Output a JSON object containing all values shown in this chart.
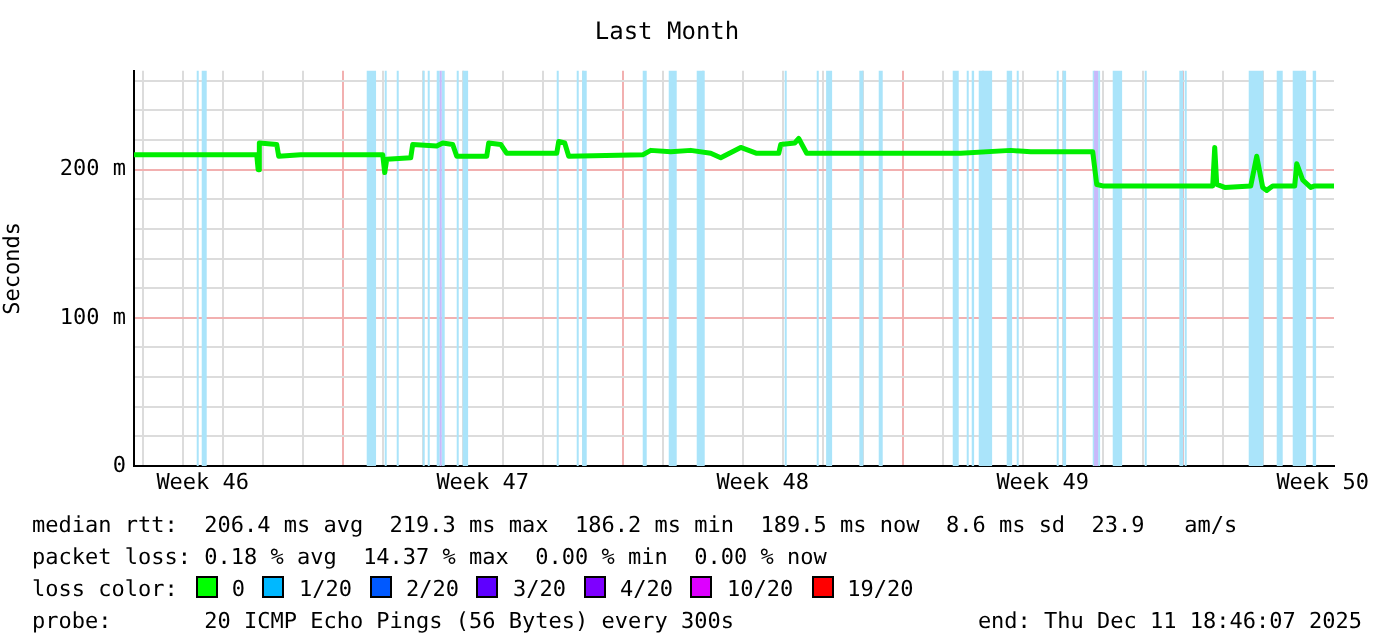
{
  "chart_data": {
    "type": "line",
    "title": "Last Month",
    "ylabel": "Seconds",
    "xlim": [
      "2025-11-11T18:46",
      "2025-12-11T18:46"
    ],
    "xticks": [
      {
        "value": "2025-11-12",
        "label": null
      },
      {
        "value": "2025-11-13",
        "label": null
      },
      {
        "value": "2025-11-13T12:00",
        "label": "Week 46"
      },
      {
        "value": "2025-11-14",
        "label": null
      },
      {
        "value": "2025-11-15",
        "label": null
      },
      {
        "value": "2025-11-16",
        "label": null
      },
      {
        "value": "2025-11-17",
        "label": null
      },
      {
        "value": "2025-11-18",
        "label": null
      },
      {
        "value": "2025-11-19",
        "label": null
      },
      {
        "value": "2025-11-20",
        "label": null
      },
      {
        "value": "2025-11-20T12:00",
        "label": "Week 47"
      },
      {
        "value": "2025-11-21",
        "label": null
      },
      {
        "value": "2025-11-22",
        "label": null
      },
      {
        "value": "2025-11-23",
        "label": null
      },
      {
        "value": "2025-11-24",
        "label": null
      },
      {
        "value": "2025-11-25",
        "label": null
      },
      {
        "value": "2025-11-26",
        "label": null
      },
      {
        "value": "2025-11-27",
        "label": null
      },
      {
        "value": "2025-11-27T12:00",
        "label": "Week 48"
      },
      {
        "value": "2025-11-28",
        "label": null
      },
      {
        "value": "2025-11-29",
        "label": null
      },
      {
        "value": "2025-11-30",
        "label": null
      },
      {
        "value": "2025-12-01",
        "label": null
      },
      {
        "value": "2025-12-02",
        "label": null
      },
      {
        "value": "2025-12-03",
        "label": null
      },
      {
        "value": "2025-12-04",
        "label": null
      },
      {
        "value": "2025-12-04T12:00",
        "label": "Week 49"
      },
      {
        "value": "2025-12-05",
        "label": null
      },
      {
        "value": "2025-12-06",
        "label": null
      },
      {
        "value": "2025-12-07",
        "label": null
      },
      {
        "value": "2025-12-08",
        "label": null
      },
      {
        "value": "2025-12-09",
        "label": null
      },
      {
        "value": "2025-12-10",
        "label": null
      },
      {
        "value": "2025-12-11",
        "label": null
      },
      {
        "value": "2025-12-11T12:00",
        "label": "Week 50"
      }
    ],
    "ylim": [
      0,
      266.7
    ],
    "yticks": [
      {
        "value": 0,
        "label": "0"
      },
      {
        "value": 20,
        "label": null
      },
      {
        "value": 40,
        "label": null
      },
      {
        "value": 60,
        "label": null
      },
      {
        "value": 80,
        "label": null
      },
      {
        "value": 100,
        "label": "100 m"
      },
      {
        "value": 120,
        "label": null
      },
      {
        "value": 140,
        "label": null
      },
      {
        "value": 160,
        "label": null
      },
      {
        "value": 180,
        "label": null
      },
      {
        "value": 200,
        "label": "200 m"
      },
      {
        "value": 220,
        "label": null
      },
      {
        "value": 240,
        "label": null
      },
      {
        "value": 260,
        "label": null
      }
    ],
    "grid": true,
    "legend": false,
    "marker": "none",
    "line_style": "solid",
    "series": [
      {
        "color": "#00ee00",
        "x": [
          "2025-11-11T18:46",
          "2025-11-14T20:24",
          "2025-11-14T21:14",
          "2025-11-14T21:58",
          "2025-11-15T08:24",
          "2025-11-15T09:36",
          "2025-11-15T22:48",
          "2025-11-18T00:00",
          "2025-11-18T01:12",
          "2025-11-18T02:24",
          "2025-11-18T16:48",
          "2025-11-18T18:00",
          "2025-11-19T08:24",
          "2025-11-19T12:00",
          "2025-11-19T18:00",
          "2025-11-19T20:24",
          "2025-11-20T14:24",
          "2025-11-20T15:36",
          "2025-11-20T22:48",
          "2025-11-21T02:24",
          "2025-11-22T08:24",
          "2025-11-22T09:36",
          "2025-11-22T13:12",
          "2025-11-22T15:36",
          "2025-11-24T12:00",
          "2025-11-24T16:48",
          "2025-11-25T04:48",
          "2025-11-25T16:48",
          "2025-11-26T04:48",
          "2025-11-26T10:48",
          "2025-11-26T22:48",
          "2025-11-27T08:24",
          "2025-11-27T21:36",
          "2025-11-27T22:48",
          "2025-11-28T07:12",
          "2025-11-28T09:36",
          "2025-11-28T14:24",
          "2025-12-02T10:48",
          "2025-12-03T16:48",
          "2025-12-04T04:48",
          "2025-12-05T18:00",
          "2025-12-05T20:24",
          "2025-12-06T00:00",
          "2025-12-08T18:00",
          "2025-12-08T19:12",
          "2025-12-08T20:24",
          "2025-12-09T01:12",
          "2025-12-09T16:48",
          "2025-12-09T20:24",
          "2025-12-10T00:00",
          "2025-12-10T02:24",
          "2025-12-10T06:00",
          "2025-12-10T19:12",
          "2025-12-10T20:24",
          "2025-12-11T00:00",
          "2025-12-11T04:48",
          "2025-12-11T07:12",
          "2025-12-11T18:46"
        ],
        "values": [
          210,
          210,
          200,
          218,
          217,
          209,
          210,
          210,
          198,
          207,
          208,
          217,
          216,
          218,
          217,
          209,
          209,
          218,
          217,
          211,
          211,
          219,
          218,
          209,
          210,
          213,
          212,
          213,
          211,
          208,
          215,
          211,
          211,
          217,
          218,
          221,
          211,
          211,
          213,
          212,
          212,
          190,
          189,
          189,
          215,
          190,
          188,
          189,
          209,
          188,
          186,
          189,
          189,
          204,
          193,
          188,
          189,
          189
        ]
      }
    ],
    "bands": [
      {
        "axis": "x",
        "from": "2025-11-13T08:24",
        "to": "2025-11-13T09:36",
        "color": "#aae4fa"
      },
      {
        "axis": "x",
        "from": "2025-11-13T11:24",
        "to": "2025-11-13T14:24",
        "color": "#aae4fa"
      },
      {
        "axis": "x",
        "from": "2025-11-17T14:24",
        "to": "2025-11-17T20:00",
        "color": "#aae4fa"
      },
      {
        "axis": "x",
        "from": "2025-11-18T01:12",
        "to": "2025-11-18T02:24",
        "color": "#aae4fa"
      },
      {
        "axis": "x",
        "from": "2025-11-18T08:24",
        "to": "2025-11-18T09:36",
        "color": "#aae4fa"
      },
      {
        "axis": "x",
        "from": "2025-11-19T00:00",
        "to": "2025-11-19T01:12",
        "color": "#aae4fa"
      },
      {
        "axis": "x",
        "from": "2025-11-19T03:00",
        "to": "2025-11-19T04:12",
        "color": "#aae4fa"
      },
      {
        "axis": "x",
        "from": "2025-11-19T08:24",
        "to": "2025-11-19T10:12",
        "color": "#aae4fa"
      },
      {
        "axis": "x",
        "from": "2025-11-19T11:24",
        "to": "2025-11-19T13:12",
        "color": "#aae4fa"
      },
      {
        "axis": "x",
        "from": "2025-11-19T10:12",
        "to": "2025-11-19T11:24",
        "color": "#c8b8fa"
      },
      {
        "axis": "x",
        "from": "2025-11-19T20:24",
        "to": "2025-11-19T21:36",
        "color": "#aae4fa"
      },
      {
        "axis": "x",
        "from": "2025-11-20T00:00",
        "to": "2025-11-20T03:14",
        "color": "#aae4fa"
      },
      {
        "axis": "x",
        "from": "2025-11-22T08:24",
        "to": "2025-11-22T09:36",
        "color": "#aae4fa"
      },
      {
        "axis": "x",
        "from": "2025-11-22T20:24",
        "to": "2025-11-22T21:36",
        "color": "#aae4fa"
      },
      {
        "axis": "x",
        "from": "2025-11-22T23:38",
        "to": "2025-11-23T02:24",
        "color": "#aae4fa"
      },
      {
        "axis": "x",
        "from": "2025-11-24T12:00",
        "to": "2025-11-24T14:24",
        "color": "#aae4fa"
      },
      {
        "axis": "x",
        "from": "2025-11-25T03:36",
        "to": "2025-11-25T08:24",
        "color": "#aae4fa"
      },
      {
        "axis": "x",
        "from": "2025-11-25T20:24",
        "to": "2025-11-26T01:12",
        "color": "#aae4fa"
      },
      {
        "axis": "x",
        "from": "2025-11-28T01:12",
        "to": "2025-11-28T02:24",
        "color": "#aae4fa"
      },
      {
        "axis": "x",
        "from": "2025-11-28T20:24",
        "to": "2025-11-28T21:36",
        "color": "#aae4fa"
      },
      {
        "axis": "x",
        "from": "2025-11-29T02:02",
        "to": "2025-11-29T05:38",
        "color": "#aae4fa"
      },
      {
        "axis": "x",
        "from": "2025-11-29T21:58",
        "to": "2025-11-30T00:22",
        "color": "#aae4fa"
      },
      {
        "axis": "x",
        "from": "2025-11-30T09:36",
        "to": "2025-11-30T12:00",
        "color": "#aae4fa"
      },
      {
        "axis": "x",
        "from": "2025-12-02T06:00",
        "to": "2025-12-02T09:36",
        "color": "#aae4fa"
      },
      {
        "axis": "x",
        "from": "2025-12-02T14:24",
        "to": "2025-12-02T15:36",
        "color": "#aae4fa"
      },
      {
        "axis": "x",
        "from": "2025-12-02T17:24",
        "to": "2025-12-02T18:50",
        "color": "#aae4fa"
      },
      {
        "axis": "x",
        "from": "2025-12-02T21:36",
        "to": "2025-12-03T05:38",
        "color": "#aae4fa"
      },
      {
        "axis": "x",
        "from": "2025-12-03T14:24",
        "to": "2025-12-03T17:38",
        "color": "#aae4fa"
      },
      {
        "axis": "x",
        "from": "2025-12-03T20:24",
        "to": "2025-12-03T21:36",
        "color": "#aae4fa"
      },
      {
        "axis": "x",
        "from": "2025-12-04T20:24",
        "to": "2025-12-04T21:36",
        "color": "#aae4fa"
      },
      {
        "axis": "x",
        "from": "2025-12-05T00:00",
        "to": "2025-12-05T02:02",
        "color": "#aae4fa"
      },
      {
        "axis": "x",
        "from": "2025-12-05T18:00",
        "to": "2025-12-05T18:50",
        "color": "#aae4fa"
      },
      {
        "axis": "x",
        "from": "2025-12-05T21:14",
        "to": "2025-12-05T21:58",
        "color": "#aae4fa"
      },
      {
        "axis": "x",
        "from": "2025-12-05T18:50",
        "to": "2025-12-05T21:14",
        "color": "#c8b8fa"
      },
      {
        "axis": "x",
        "from": "2025-12-06T06:00",
        "to": "2025-12-06T11:38",
        "color": "#aae4fa"
      },
      {
        "axis": "x",
        "from": "2025-12-07T01:12",
        "to": "2025-12-07T02:24",
        "color": "#aae4fa"
      },
      {
        "axis": "x",
        "from": "2025-12-07T21:58",
        "to": "2025-12-08T00:22",
        "color": "#aae4fa"
      },
      {
        "axis": "x",
        "from": "2025-12-08T01:12",
        "to": "2025-12-08T02:24",
        "color": "#aae4fa"
      },
      {
        "axis": "x",
        "from": "2025-12-09T15:36",
        "to": "2025-12-10T00:22",
        "color": "#aae4fa"
      },
      {
        "axis": "x",
        "from": "2025-12-10T08:24",
        "to": "2025-12-10T12:00",
        "color": "#aae4fa"
      },
      {
        "axis": "x",
        "from": "2025-12-10T18:00",
        "to": "2025-12-11T02:02",
        "color": "#aae4fa"
      },
      {
        "axis": "x",
        "from": "2025-12-11T06:00",
        "to": "2025-12-11T08:02",
        "color": "#aae4fa"
      }
    ],
    "annotations": [
      "median rtt:  206.4 ms avg  219.3 ms max  186.2 ms min  189.5 ms now  8.6 ms sd  23.9   am/s",
      "packet loss: 0.18 % avg  14.37 % max  0.00 % min  0.00 % now",
      "loss color:",
      "0",
      "1/20",
      "2/20",
      "3/20",
      "4/20",
      "10/20",
      "19/20",
      "probe:       20 ICMP Echo Pings (56 Bytes) every 300s",
      "end: Thu Dec 11 18:46:07 2025"
    ]
  }
}
